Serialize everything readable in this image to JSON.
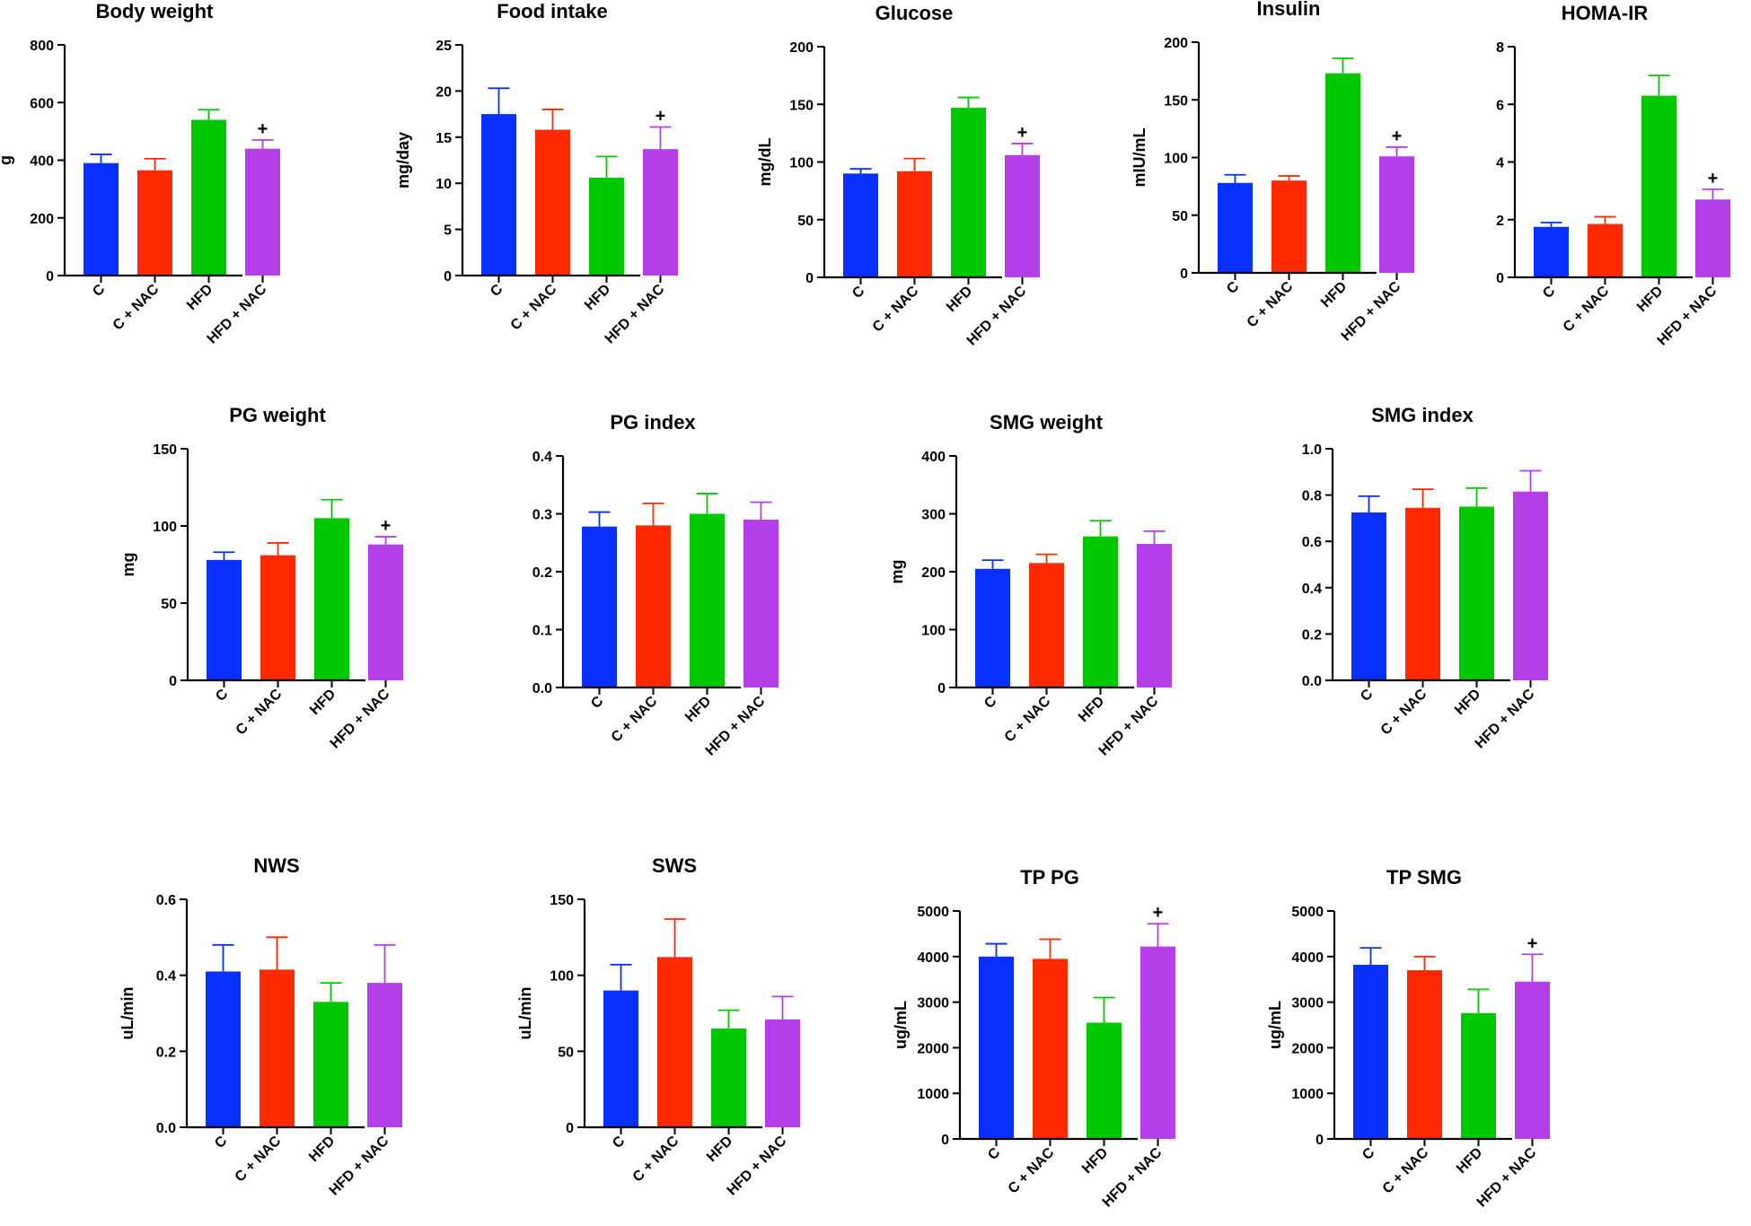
{
  "colors": {
    "C": "#0a30ff",
    "C + NAC": "#ff2a00",
    "HFD": "#00c800",
    "HFD + NAC": "#b43ee8",
    "axis": "#000000"
  },
  "chart_data": [
    {
      "type": "bar",
      "title": "Body weight",
      "ylabel": "g",
      "categories": [
        "C",
        "C + NAC",
        "HFD",
        "HFD + NAC"
      ],
      "values": [
        390,
        365,
        540,
        440
      ],
      "errors": [
        30,
        40,
        35,
        30
      ],
      "ylim": [
        0,
        800
      ],
      "yticks": [
        "0",
        "200",
        "400",
        "600",
        "800"
      ],
      "significance": [
        "",
        "",
        "",
        "+"
      ]
    },
    {
      "type": "bar",
      "title": "Food intake",
      "ylabel": "mg/day",
      "categories": [
        "C",
        "C + NAC",
        "HFD",
        "HFD + NAC"
      ],
      "values": [
        17.5,
        15.8,
        10.6,
        13.7
      ],
      "errors": [
        2.8,
        2.2,
        2.3,
        2.4
      ],
      "ylim": [
        0,
        25
      ],
      "yticks": [
        "0",
        "5",
        "10",
        "15",
        "20",
        "25"
      ],
      "significance": [
        "",
        "",
        "",
        "+"
      ]
    },
    {
      "type": "bar",
      "title": "Glucose",
      "ylabel": "mg/dL",
      "categories": [
        "C",
        "C + NAC",
        "HFD",
        "HFD + NAC"
      ],
      "values": [
        90,
        92,
        147,
        106
      ],
      "errors": [
        4,
        11,
        9,
        10
      ],
      "ylim": [
        0,
        200
      ],
      "yticks": [
        "0",
        "50",
        "100",
        "150",
        "200"
      ],
      "significance": [
        "",
        "",
        "",
        "+"
      ]
    },
    {
      "type": "bar",
      "title": "Insulin",
      "ylabel": "mIU/mL",
      "categories": [
        "C",
        "C + NAC",
        "HFD",
        "HFD + NAC"
      ],
      "values": [
        78,
        80,
        173,
        101
      ],
      "errors": [
        7,
        4,
        13,
        8
      ],
      "ylim": [
        0,
        200
      ],
      "yticks": [
        "0",
        "50",
        "100",
        "150",
        "200"
      ],
      "significance": [
        "",
        "",
        "",
        "+"
      ]
    },
    {
      "type": "bar",
      "title": "HOMA-IR",
      "ylabel": "",
      "categories": [
        "C",
        "C + NAC",
        "HFD",
        "HFD + NAC"
      ],
      "values": [
        1.75,
        1.85,
        6.3,
        2.7
      ],
      "errors": [
        0.15,
        0.25,
        0.7,
        0.35
      ],
      "ylim": [
        0,
        8
      ],
      "yticks": [
        "0",
        "2",
        "4",
        "6",
        "8"
      ],
      "significance": [
        "",
        "",
        "",
        "+"
      ]
    },
    {
      "type": "bar",
      "title": "PG weight",
      "ylabel": "mg",
      "categories": [
        "C",
        "C + NAC",
        "HFD",
        "HFD + NAC"
      ],
      "values": [
        78,
        81,
        105,
        88
      ],
      "errors": [
        5,
        8,
        12,
        5
      ],
      "ylim": [
        0,
        150
      ],
      "yticks": [
        "0",
        "50",
        "100",
        "150"
      ],
      "significance": [
        "",
        "",
        "",
        "+"
      ]
    },
    {
      "type": "bar",
      "title": "PG index",
      "ylabel": "",
      "categories": [
        "C",
        "C + NAC",
        "HFD",
        "HFD + NAC"
      ],
      "values": [
        0.278,
        0.28,
        0.3,
        0.29
      ],
      "errors": [
        0.025,
        0.038,
        0.035,
        0.03
      ],
      "ylim": [
        0,
        0.4
      ],
      "yticks": [
        "0.0",
        "0.1",
        "0.2",
        "0.3",
        "0.4"
      ],
      "significance": [
        "",
        "",
        "",
        ""
      ]
    },
    {
      "type": "bar",
      "title": "SMG weight",
      "ylabel": "mg",
      "categories": [
        "C",
        "C + NAC",
        "HFD",
        "HFD + NAC"
      ],
      "values": [
        205,
        215,
        261,
        248
      ],
      "errors": [
        15,
        15,
        27,
        22
      ],
      "ylim": [
        0,
        400
      ],
      "yticks": [
        "0",
        "100",
        "200",
        "300",
        "400"
      ],
      "significance": [
        "",
        "",
        "",
        ""
      ]
    },
    {
      "type": "bar",
      "title": "SMG index",
      "ylabel": "",
      "categories": [
        "C",
        "C + NAC",
        "HFD",
        "HFD + NAC"
      ],
      "values": [
        0.725,
        0.745,
        0.75,
        0.815
      ],
      "errors": [
        0.07,
        0.08,
        0.08,
        0.09
      ],
      "ylim": [
        0,
        1.0
      ],
      "yticks": [
        "0.0",
        "0.2",
        "0.4",
        "0.6",
        "0.8",
        "1.0"
      ],
      "significance": [
        "",
        "",
        "",
        ""
      ]
    },
    {
      "type": "bar",
      "title": "NWS",
      "ylabel": "uL/min",
      "categories": [
        "C",
        "C + NAC",
        "HFD",
        "HFD + NAC"
      ],
      "values": [
        0.41,
        0.415,
        0.33,
        0.38
      ],
      "errors": [
        0.07,
        0.085,
        0.05,
        0.1
      ],
      "ylim": [
        0,
        0.6
      ],
      "yticks": [
        "0.0",
        "0.2",
        "0.4",
        "0.6"
      ],
      "significance": [
        "",
        "",
        "",
        ""
      ]
    },
    {
      "type": "bar",
      "title": "SWS",
      "ylabel": "uL/min",
      "categories": [
        "C",
        "C + NAC",
        "HFD",
        "HFD + NAC"
      ],
      "values": [
        90,
        112,
        65,
        71
      ],
      "errors": [
        17,
        25,
        12,
        15
      ],
      "ylim": [
        0,
        150
      ],
      "yticks": [
        "0",
        "50",
        "100",
        "150"
      ],
      "significance": [
        "",
        "",
        "",
        ""
      ]
    },
    {
      "type": "bar",
      "title": "TP PG",
      "ylabel": "ug/mL",
      "categories": [
        "C",
        "C + NAC",
        "HFD",
        "HFD + NAC"
      ],
      "values": [
        4000,
        3950,
        2550,
        4220
      ],
      "errors": [
        280,
        430,
        550,
        500
      ],
      "ylim": [
        0,
        5000
      ],
      "yticks": [
        "0",
        "1000",
        "2000",
        "3000",
        "4000",
        "5000"
      ],
      "significance": [
        "",
        "",
        "",
        "+"
      ]
    },
    {
      "type": "bar",
      "title": "TP SMG",
      "ylabel": "ug/mL",
      "categories": [
        "C",
        "C + NAC",
        "HFD",
        "HFD + NAC"
      ],
      "values": [
        3820,
        3700,
        2760,
        3450
      ],
      "errors": [
        370,
        300,
        520,
        600
      ],
      "ylim": [
        0,
        5000
      ],
      "yticks": [
        "0",
        "1000",
        "2000",
        "3000",
        "4000",
        "5000"
      ],
      "significance": [
        "",
        "",
        "",
        "+"
      ]
    }
  ]
}
